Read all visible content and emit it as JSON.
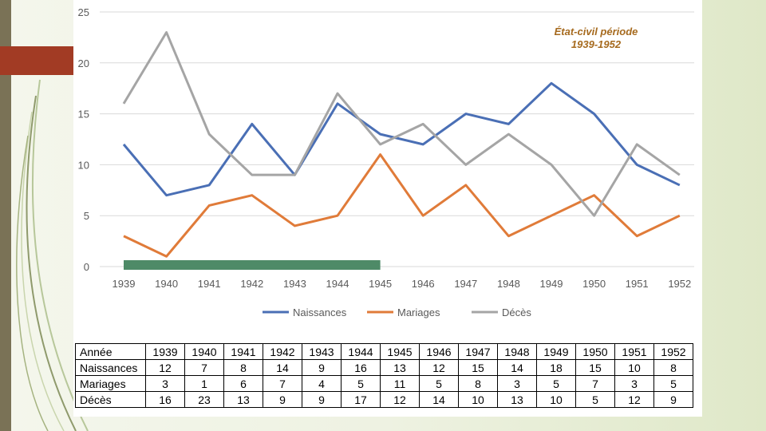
{
  "colors": {
    "naissances": "#4a6fb5",
    "mariages": "#e07b39",
    "deces": "#a5a5a5",
    "bar": "#4e8a67"
  },
  "chart_data": {
    "type": "line",
    "title": "État-civil période 1939-1952",
    "title_line1": "État-civil période",
    "title_line2": "1939-1952",
    "categories": [
      "1939",
      "1940",
      "1941",
      "1942",
      "1943",
      "1944",
      "1945",
      "1946",
      "1947",
      "1948",
      "1949",
      "1950",
      "1951",
      "1952"
    ],
    "series": [
      {
        "name": "Naissances",
        "values": [
          12,
          7,
          8,
          14,
          9,
          16,
          13,
          12,
          15,
          14,
          18,
          15,
          10,
          8
        ]
      },
      {
        "name": "Mariages",
        "values": [
          3,
          1,
          6,
          7,
          4,
          5,
          11,
          5,
          8,
          3,
          5,
          7,
          3,
          5
        ]
      },
      {
        "name": "Décès",
        "values": [
          16,
          23,
          13,
          9,
          9,
          17,
          12,
          14,
          10,
          13,
          10,
          5,
          12,
          9
        ]
      }
    ],
    "ylim": [
      0,
      25
    ],
    "yticks": [
      "0",
      "5",
      "10",
      "15",
      "20",
      "25"
    ],
    "grid": true,
    "legend": "bottom",
    "highlight_span": [
      "1939",
      "1945"
    ]
  },
  "table": {
    "header_label": "Année",
    "rows": [
      {
        "label": "Naissances",
        "values": [
          "12",
          "7",
          "8",
          "14",
          "9",
          "16",
          "13",
          "12",
          "15",
          "14",
          "18",
          "15",
          "10",
          "8"
        ]
      },
      {
        "label": "Mariages",
        "values": [
          "3",
          "1",
          "6",
          "7",
          "4",
          "5",
          "11",
          "5",
          "8",
          "3",
          "5",
          "7",
          "3",
          "5"
        ]
      },
      {
        "label": "Décès",
        "values": [
          "16",
          "23",
          "13",
          "9",
          "9",
          "17",
          "12",
          "14",
          "10",
          "13",
          "10",
          "5",
          "12",
          "9"
        ]
      }
    ]
  }
}
